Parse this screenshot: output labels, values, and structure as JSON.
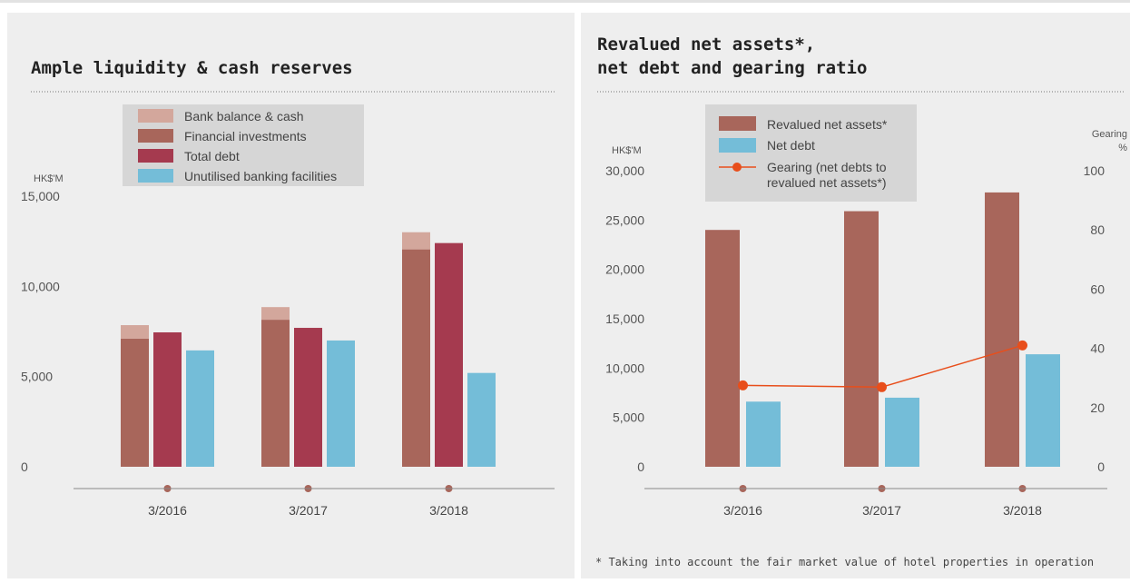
{
  "chart_data": [
    {
      "type": "bar",
      "title": "Ample liquidity & cash reserves",
      "ylabel": "HK$'M",
      "ylim": [
        0,
        15000
      ],
      "yticks": [
        "0",
        "5,000",
        "10,000",
        "15,000"
      ],
      "categories": [
        "3/2016",
        "3/2017",
        "3/2018"
      ],
      "stacked_groups": [
        [
          "Financial investments",
          "Bank balance & cash"
        ]
      ],
      "series": [
        {
          "name": "Bank balance & cash",
          "color": "#d3a79c",
          "values": [
            750,
            700,
            950
          ]
        },
        {
          "name": "Financial investments",
          "color": "#a8665b",
          "values": [
            7100,
            8150,
            12050
          ]
        },
        {
          "name": "Total debt",
          "color": "#a53a4f",
          "values": [
            7450,
            7700,
            12400
          ]
        },
        {
          "name": "Unutilised banking facilities",
          "color": "#74bdd8",
          "values": [
            6450,
            7000,
            5200
          ]
        }
      ],
      "legend": "top"
    },
    {
      "type": "bar",
      "title": [
        "Revalued net assets*,",
        "net debt and gearing ratio"
      ],
      "ylabel": "HK$'M",
      "ylabel_right": [
        "Gearing",
        "%"
      ],
      "ylim": [
        0,
        30000
      ],
      "ylim_right": [
        0,
        100
      ],
      "yticks": [
        "0",
        "5,000",
        "10,000",
        "15,000",
        "20,000",
        "25,000",
        "30,000"
      ],
      "yticks_right": [
        "0",
        "20",
        "40",
        "60",
        "80",
        "100"
      ],
      "categories": [
        "3/2016",
        "3/2017",
        "3/2018"
      ],
      "series": [
        {
          "name": "Revalued net assets*",
          "color": "#a8665b",
          "values": [
            24000,
            25900,
            27800
          ]
        },
        {
          "name": "Net debt",
          "color": "#74bdd8",
          "values": [
            6600,
            7000,
            11400
          ]
        },
        {
          "name": "Gearing (net debts to revalued net assets*)",
          "legend_lines": [
            "Gearing (net debts to",
            "revalued net assets*)"
          ],
          "color": "#e84e1b",
          "type": "line",
          "axis": "right",
          "values": [
            27.5,
            26.9,
            41.0
          ]
        }
      ],
      "legend": "top",
      "footnote": "* Taking into account the fair market value of hotel properties in operation"
    }
  ]
}
